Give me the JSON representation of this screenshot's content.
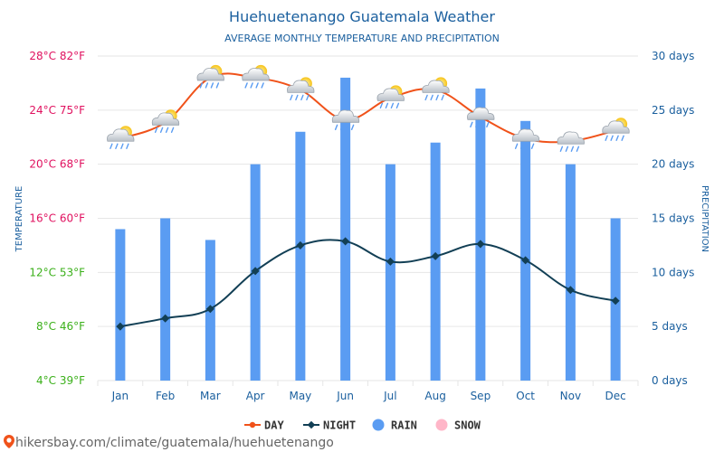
{
  "title": "Huehuetenango Guatemala Weather",
  "subtitle": "AVERAGE MONTHLY TEMPERATURE AND PRECIPITATION",
  "footer": "hikersbay.com/climate/guatemala/huehuetenango",
  "colors": {
    "title": "#1a5f9e",
    "day": "#f0521a",
    "night": "#123f55",
    "rain": "#5a9cf2",
    "snow": "#ffb6c8",
    "left_axis": "#e0115f",
    "left_axis_low": "#3bb01a",
    "right_axis": "#1a5f9e",
    "grid": "#e6e6e6"
  },
  "chart_data": {
    "type": "bar+line",
    "categories": [
      "Jan",
      "Feb",
      "Mar",
      "Apr",
      "May",
      "Jun",
      "Jul",
      "Aug",
      "Sep",
      "Oct",
      "Nov",
      "Dec"
    ],
    "series": [
      {
        "name": "DAY",
        "type": "line",
        "axis": "left",
        "unit": "°C",
        "values": [
          21.9,
          23.1,
          26.4,
          26.4,
          25.5,
          23.3,
          24.9,
          25.5,
          23.5,
          21.9,
          21.7,
          22.5
        ]
      },
      {
        "name": "NIGHT",
        "type": "line",
        "axis": "left",
        "unit": "°C",
        "values": [
          8.0,
          8.6,
          9.3,
          12.1,
          14.0,
          14.3,
          12.8,
          13.2,
          14.1,
          12.9,
          10.7,
          9.9
        ]
      },
      {
        "name": "RAIN",
        "type": "bar",
        "axis": "right",
        "unit": "days",
        "values": [
          14,
          15,
          13,
          20,
          23,
          28,
          20,
          22,
          27,
          24,
          20,
          15
        ]
      },
      {
        "name": "SNOW",
        "type": "bar",
        "axis": "right",
        "unit": "days",
        "values": [
          0,
          0,
          0,
          0,
          0,
          0,
          0,
          0,
          0,
          0,
          0,
          0
        ]
      }
    ],
    "weather_icons": [
      "sun-cloud-rain",
      "sun-cloud-rain",
      "sun-cloud-rain",
      "sun-cloud-rain",
      "sun-cloud-rain",
      "cloud-rain",
      "sun-cloud-rain",
      "sun-cloud-rain",
      "cloud-rain",
      "cloud-rain",
      "cloud-rain",
      "sun-cloud-rain"
    ],
    "left_axis": {
      "label": "TEMPERATURE",
      "range": [
        4,
        28
      ],
      "ticks": [
        {
          "value": 28,
          "label": "28°C 82°F"
        },
        {
          "value": 24,
          "label": "24°C 75°F"
        },
        {
          "value": 20,
          "label": "20°C 68°F"
        },
        {
          "value": 16,
          "label": "16°C 60°F"
        },
        {
          "value": 12,
          "label": "12°C 53°F"
        },
        {
          "value": 8,
          "label": "8°C 46°F"
        },
        {
          "value": 4,
          "label": "4°C 39°F"
        }
      ]
    },
    "right_axis": {
      "label": "PRECIPITATION",
      "range": [
        0,
        30
      ],
      "ticks": [
        {
          "value": 30,
          "label": "30 days"
        },
        {
          "value": 25,
          "label": "25 days"
        },
        {
          "value": 20,
          "label": "20 days"
        },
        {
          "value": 15,
          "label": "15 days"
        },
        {
          "value": 10,
          "label": "10 days"
        },
        {
          "value": 5,
          "label": "5 days"
        },
        {
          "value": 0,
          "label": "0 days"
        }
      ]
    },
    "grid": true,
    "legend": {
      "position": "bottom",
      "items": [
        "DAY",
        "NIGHT",
        "RAIN",
        "SNOW"
      ]
    }
  }
}
